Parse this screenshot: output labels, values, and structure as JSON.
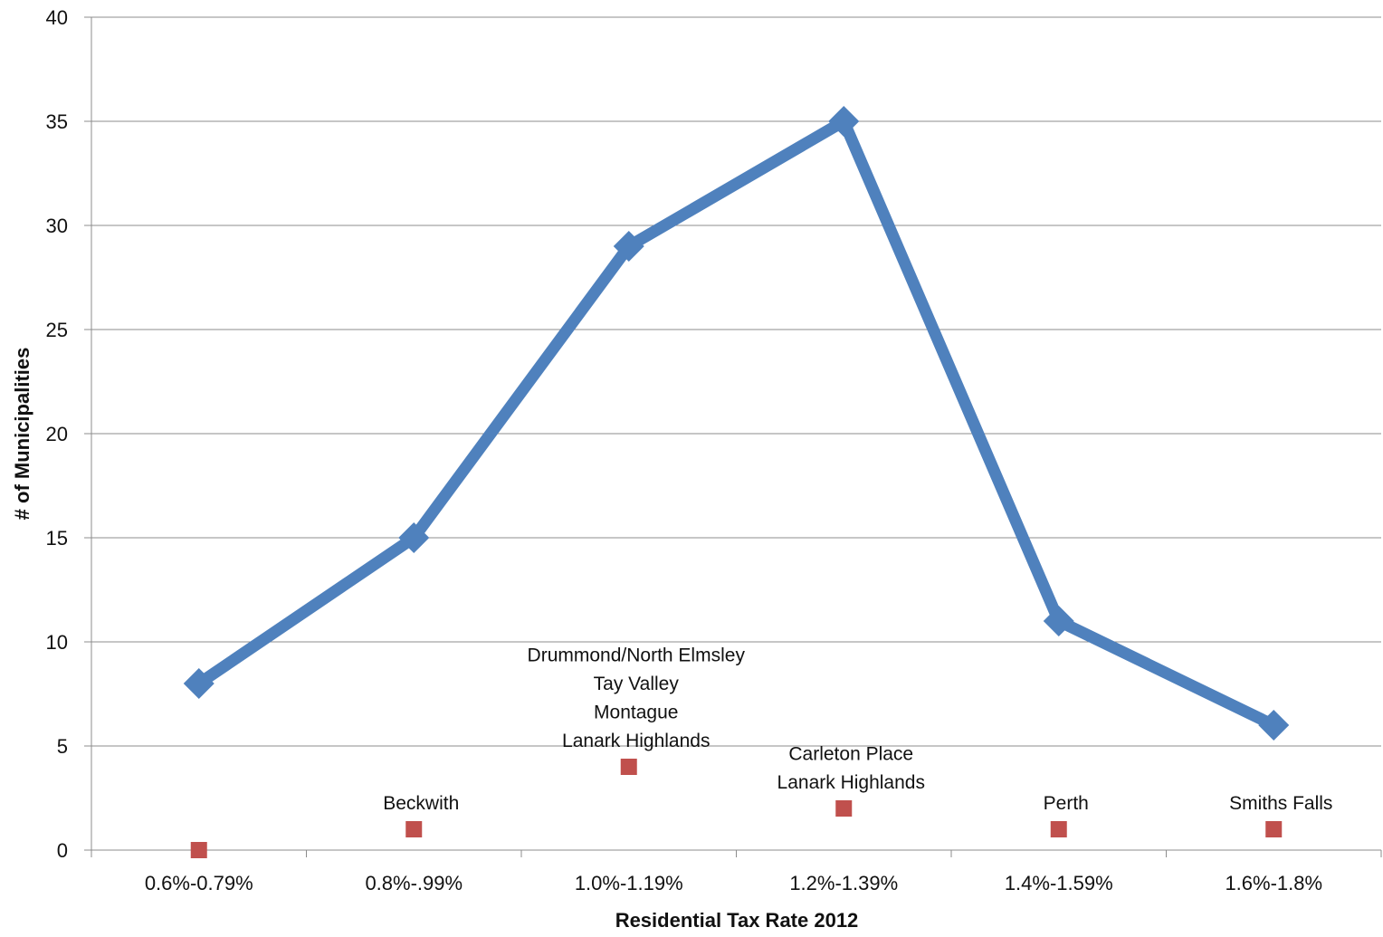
{
  "chart_data": {
    "type": "line",
    "title": "",
    "xlabel": "Residential Tax Rate 2012",
    "ylabel": "# of Municipalities",
    "categories": [
      "0.6%-0.79%",
      "0.8%-.99%",
      "1.0%-1.19%",
      "1.2%-1.39%",
      "1.4%-1.59%",
      "1.6%-1.8%"
    ],
    "ylim": [
      0,
      40
    ],
    "yticks": [
      "0",
      "5",
      "10",
      "15",
      "20",
      "25",
      "30",
      "35",
      "40"
    ],
    "grid": true,
    "legend": "none",
    "series": [
      {
        "values": [
          8,
          15,
          29,
          35,
          11,
          6
        ],
        "color": "#4F81BD",
        "marker": "diamond",
        "line": true
      },
      {
        "values": [
          0,
          1,
          4,
          2,
          1,
          1
        ],
        "color": "#C0504D",
        "marker": "square",
        "line": false,
        "labels": [
          [],
          [
            "Beckwith"
          ],
          [
            "Drummond/North Elmsley",
            "Tay Valley",
            "Montague",
            "Lanark Highlands"
          ],
          [
            "Carleton Place",
            "Lanark Highlands"
          ],
          [
            "Perth"
          ],
          [
            "Smiths Falls"
          ]
        ]
      }
    ]
  }
}
